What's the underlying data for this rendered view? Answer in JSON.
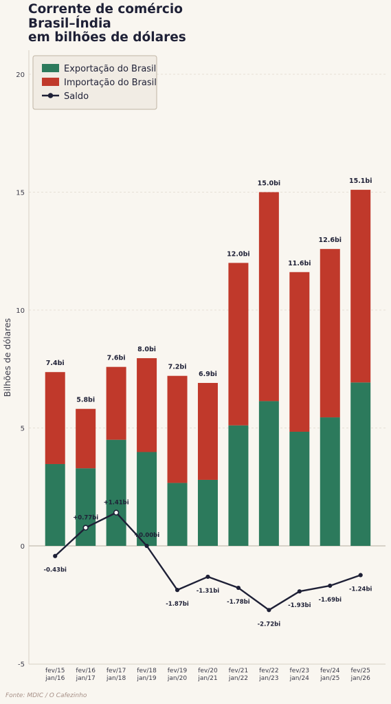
{
  "chart_data": {
    "type": "bar",
    "stacked": true,
    "title": "Corrente de comércio\nBrasil–Índia\nem bilhões de dólares",
    "ylabel": "Bilhões de dólares",
    "ylim": [
      -5,
      21
    ],
    "yticks": [
      -5,
      0,
      5,
      10,
      15,
      20
    ],
    "grid": true,
    "legend_position": "top-left",
    "categories": [
      "fev/15\njan/16",
      "fev/16\njan/17",
      "fev/17\njan/18",
      "fev/18\njan/19",
      "fev/19\njan/20",
      "fev/20\njan/21",
      "fev/21\njan/22",
      "fev/22\njan/23",
      "fev/23\njan/24",
      "fev/24\njan/25",
      "fev/25\njan/26"
    ],
    "series": [
      {
        "name": "Exportação do Brasil",
        "type": "bar",
        "color": "#2c7a5c",
        "values": [
          3.47,
          3.29,
          4.5,
          3.98,
          2.67,
          2.8,
          5.11,
          6.14,
          4.84,
          5.45,
          6.93
        ]
      },
      {
        "name": "Importação do Brasil",
        "type": "bar",
        "color": "#c0392b",
        "values": [
          3.9,
          2.52,
          3.09,
          3.98,
          4.54,
          4.11,
          6.89,
          8.86,
          6.77,
          7.14,
          8.17
        ]
      },
      {
        "name": "Saldo",
        "type": "line",
        "color": "#1e2036",
        "values": [
          -0.43,
          0.77,
          1.41,
          0.0,
          -1.87,
          -1.31,
          -1.78,
          -2.72,
          -1.93,
          -1.69,
          -1.24
        ]
      }
    ],
    "total_labels": [
      "7.4bi",
      "5.8bi",
      "7.6bi",
      "8.0bi",
      "7.2bi",
      "6.9bi",
      "12.0bi",
      "15.0bi",
      "11.6bi",
      "12.6bi",
      "15.1bi"
    ],
    "saldo_labels": [
      "-0.43bi",
      "+0.77bi",
      "+1.41bi",
      "+0.00bi",
      "-1.87bi",
      "-1.31bi",
      "-1.78bi",
      "-2.72bi",
      "-1.93bi",
      "-1.69bi",
      "-1.24bi"
    ],
    "source": "Fonte: MDIC / O Cafezinho"
  }
}
